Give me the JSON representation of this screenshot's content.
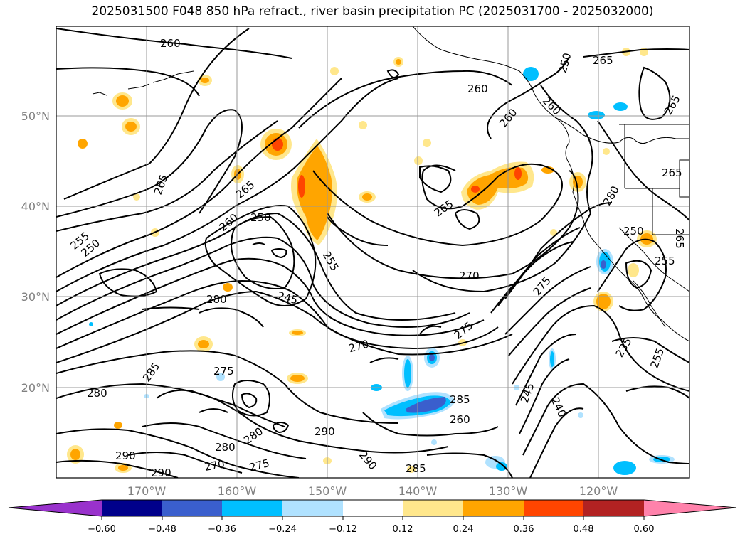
{
  "title": "2025031500 F048 850 hPa refract., river basin precipitation PC (2025031700 - 2025032000)",
  "map": {
    "lon_range": [
      -180,
      -110
    ],
    "lat_range": [
      10,
      60
    ],
    "lat_ticks": [
      {
        "label": "50°N"
      },
      {
        "label": "40°N"
      },
      {
        "label": "30°N"
      },
      {
        "label": "20°N"
      }
    ],
    "lon_ticks": [
      {
        "label": "170°W"
      },
      {
        "label": "160°W"
      },
      {
        "label": "150°W"
      },
      {
        "label": "140°W"
      },
      {
        "label": "130°W"
      },
      {
        "label": "120°W"
      }
    ],
    "grid": true
  },
  "contour_labels": [
    "260",
    "260",
    "265",
    "265",
    "265",
    "260",
    "260",
    "265",
    "250",
    "255",
    "255",
    "270",
    "275",
    "275",
    "270",
    "280",
    "245",
    "285",
    "275",
    "280",
    "280",
    "290",
    "280",
    "270",
    "275",
    "290",
    "290",
    "290",
    "285",
    "285",
    "260",
    "245",
    "240",
    "235",
    "255",
    "250",
    "265",
    "265",
    "260",
    "250",
    "255",
    "265",
    "280",
    "250"
  ],
  "colorbar": {
    "ticks": [
      "−0.60",
      "−0.48",
      "−0.36",
      "−0.24",
      "−0.12",
      "0.12",
      "0.24",
      "0.36",
      "0.48",
      "0.60"
    ],
    "colors": [
      "#9932cc",
      "#00008b",
      "#3a5fcd",
      "#00bfff",
      "#b0e2ff",
      "#ffffff",
      "#ffe78c",
      "#ffa500",
      "#ff4500",
      "#b22222",
      "#ff82ab"
    ]
  }
}
